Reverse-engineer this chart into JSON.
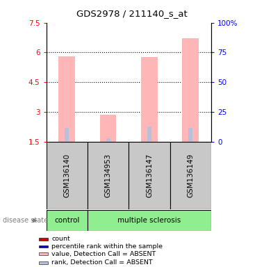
{
  "title": "GDS2978 / 211140_s_at",
  "samples": [
    "GSM136140",
    "GSM134953",
    "GSM136147",
    "GSM136149"
  ],
  "groups": [
    "control",
    "multiple sclerosis",
    "multiple sclerosis",
    "multiple sclerosis"
  ],
  "bar_values": [
    5.8,
    2.85,
    5.75,
    6.7
  ],
  "rank_values": [
    2.2,
    1.65,
    2.25,
    2.2
  ],
  "ylim_left": [
    1.5,
    7.5
  ],
  "ylim_right": [
    0,
    100
  ],
  "yticks_left": [
    1.5,
    3.0,
    4.5,
    6.0,
    7.5
  ],
  "ytick_labels_left": [
    "1.5",
    "3",
    "4.5",
    "6",
    "7.5"
  ],
  "yticks_right": [
    0,
    25,
    50,
    75,
    100
  ],
  "ytick_labels_right": [
    "0",
    "25",
    "50",
    "75",
    "100%"
  ],
  "bar_color": "#FFB6B6",
  "rank_bar_color": "#B8C0DC",
  "control_color": "#90EE90",
  "ms_color": "#90EE90",
  "sample_box_color": "#C8C8C8",
  "legend_items": [
    {
      "label": "count",
      "color": "#CC0000"
    },
    {
      "label": "percentile rank within the sample",
      "color": "#0000CC"
    },
    {
      "label": "value, Detection Call = ABSENT",
      "color": "#FFB6B6"
    },
    {
      "label": "rank, Detection Call = ABSENT",
      "color": "#B8C0DC"
    }
  ],
  "fig_width": 3.8,
  "fig_height": 3.84
}
